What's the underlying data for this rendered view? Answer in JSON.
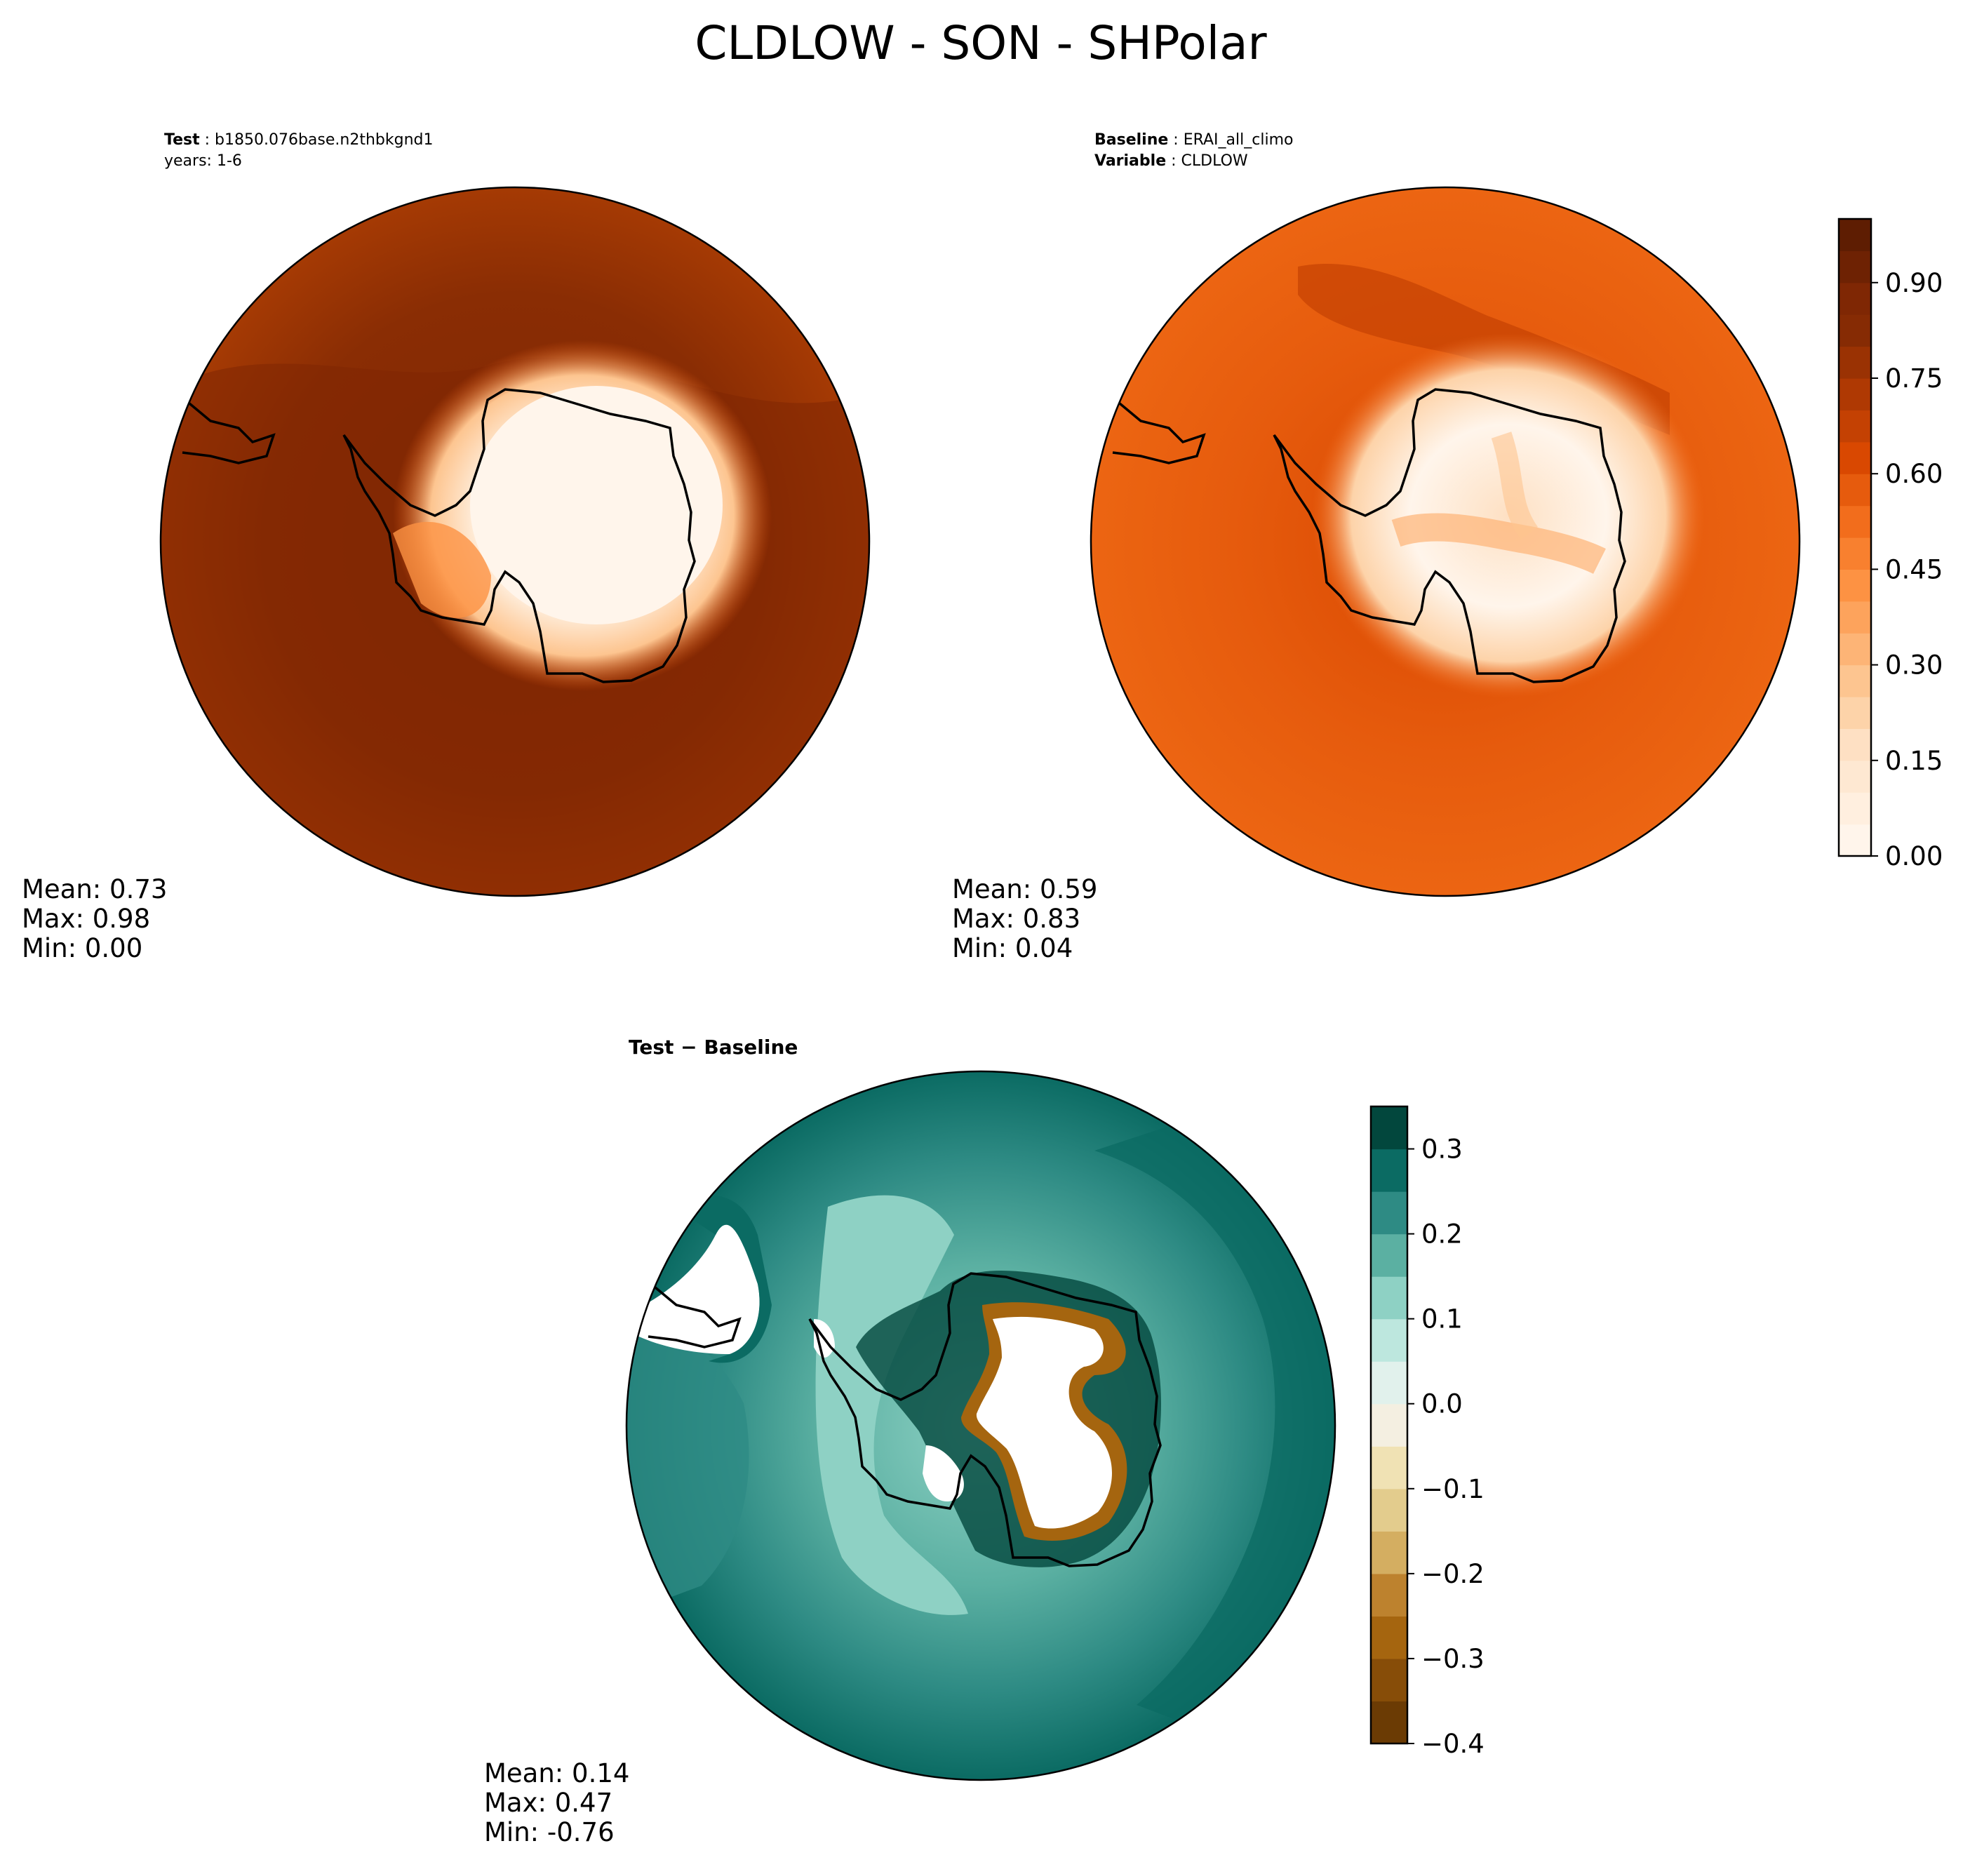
{
  "figure": {
    "title": "CLDLOW - SON - SHPolar"
  },
  "panels": {
    "test": {
      "header_key": "Test",
      "header_value": "b1850.076base.n2thbkgnd1",
      "years": "years: 1-6",
      "stats": {
        "mean": "Mean:  0.73",
        "max": "Max:  0.98",
        "min": "Min:  0.00"
      }
    },
    "baseline": {
      "header_key": "Baseline",
      "header_value": "ERAI_all_climo",
      "variable_key": "Variable",
      "variable_value": "CLDLOW",
      "stats": {
        "mean": "Mean:  0.59",
        "max": "Max:  0.83",
        "min": "Min:  0.04"
      }
    },
    "diff": {
      "header": "Test − Baseline",
      "stats": {
        "mean": "Mean:  0.14",
        "max": "Max:  0.47",
        "min": "Min: -0.76"
      }
    }
  },
  "chart_data": [
    {
      "type": "heatmap",
      "title": "Test: b1850.076base.n2thbkgnd1",
      "projection": "south polar stereographic",
      "variable": "CLDLOW",
      "season": "SON",
      "stats": {
        "mean": 0.73,
        "max": 0.98,
        "min": 0.0
      },
      "colormap": "Oranges",
      "vmin": 0.0,
      "vmax": 1.0
    },
    {
      "type": "heatmap",
      "title": "Baseline: ERAI_all_climo",
      "projection": "south polar stereographic",
      "variable": "CLDLOW",
      "season": "SON",
      "stats": {
        "mean": 0.59,
        "max": 0.83,
        "min": 0.04
      },
      "colormap": "Oranges",
      "colorbar": {
        "min": 0.0,
        "max": 1.0,
        "ticks": [
          0.0,
          0.15,
          0.3,
          0.45,
          0.6,
          0.75,
          0.9
        ],
        "tick_labels": [
          "0.00",
          "0.15",
          "0.30",
          "0.45",
          "0.60",
          "0.75",
          "0.90"
        ],
        "levels": 20,
        "colors": [
          "#fff5eb",
          "#ffefdf",
          "#fee8d2",
          "#fee0c3",
          "#fdd3a9",
          "#fdc590",
          "#fdb476",
          "#fda35c",
          "#fd9243",
          "#f8802f",
          "#f26d1c",
          "#e65b0d",
          "#d94801",
          "#c44103",
          "#af3903",
          "#9a3203",
          "#862b04",
          "#7f2704",
          "#6e2203",
          "#5e1d02"
        ]
      }
    },
    {
      "type": "heatmap",
      "title": "Test − Baseline",
      "projection": "south polar stereographic",
      "variable": "CLDLOW difference",
      "stats": {
        "mean": 0.14,
        "max": 0.47,
        "min": -0.76
      },
      "colormap": "BrBG",
      "colorbar": {
        "min": -0.4,
        "max": 0.35,
        "ticks": [
          -0.4,
          -0.3,
          -0.2,
          -0.1,
          0.0,
          0.1,
          0.2,
          0.3
        ],
        "tick_labels": [
          "−0.4",
          "−0.3",
          "−0.2",
          "−0.1",
          "0.0",
          "0.1",
          "0.2",
          "0.3"
        ],
        "levels": 15,
        "colors": [
          "#6b3b04",
          "#874d08",
          "#a5650f",
          "#bd822e",
          "#d4ae61",
          "#e3cc8d",
          "#f0e2b4",
          "#f4efe1",
          "#e1f1ec",
          "#bde7de",
          "#8ed1c4",
          "#5bb0a2",
          "#2e8b84",
          "#0b6b63",
          "#02473d"
        ]
      }
    }
  ]
}
